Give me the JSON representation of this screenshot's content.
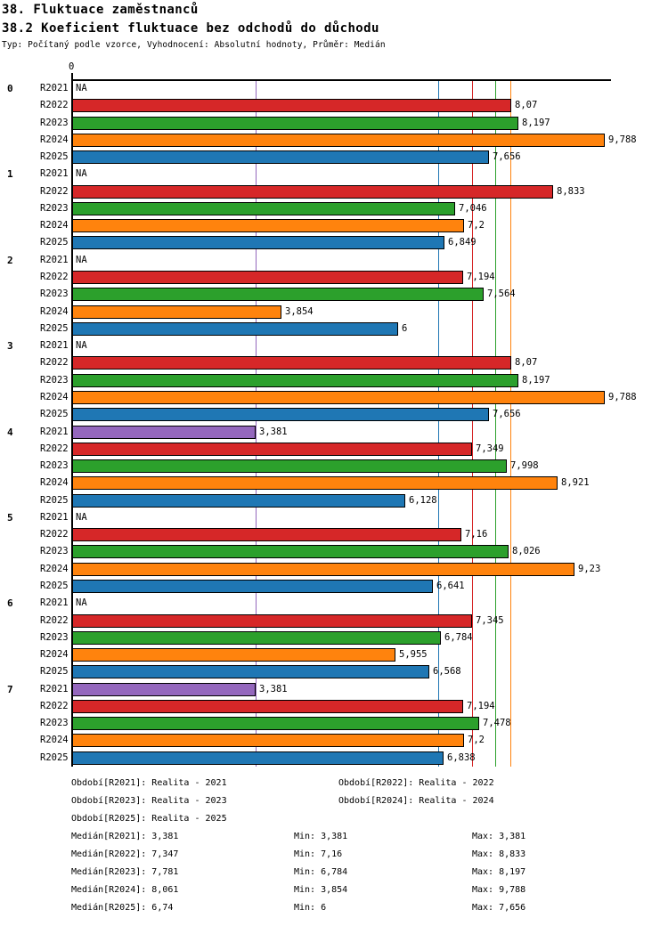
{
  "header": {
    "title": "38. Fluktuace zaměstnanců",
    "subtitle": "38.2 Koeficient fluktuace bez odchodů do důchodu",
    "meta": "Typ: Počítaný podle vzorce, Vyhodnocení: Absolutní hodnoty, Průměr: Medián"
  },
  "chart_data": {
    "type": "bar",
    "orientation": "horizontal",
    "title": "38.2 Koeficient fluktuace bez odchodů do důchodu",
    "axis": {
      "origin_label": "0",
      "value_min": 0,
      "value_max": 9.9,
      "grid": false
    },
    "row_labels": [
      "R2021",
      "R2022",
      "R2023",
      "R2024",
      "R2025"
    ],
    "series_colors": {
      "R2021": "#9467BD",
      "R2022": "#D62728",
      "R2023": "#2CA02C",
      "R2024": "#FF830D",
      "R2025": "#1F77B4"
    },
    "na_label": "NA",
    "groups": [
      {
        "label": "0",
        "values": [
          {
            "series": "R2021",
            "value": null,
            "display": "NA"
          },
          {
            "series": "R2022",
            "value": 8.07,
            "display": "8,07"
          },
          {
            "series": "R2023",
            "value": 8.197,
            "display": "8,197"
          },
          {
            "series": "R2024",
            "value": 9.788,
            "display": "9,788"
          },
          {
            "series": "R2025",
            "value": 7.656,
            "display": "7,656"
          }
        ]
      },
      {
        "label": "1",
        "values": [
          {
            "series": "R2021",
            "value": null,
            "display": "NA"
          },
          {
            "series": "R2022",
            "value": 8.833,
            "display": "8,833"
          },
          {
            "series": "R2023",
            "value": 7.046,
            "display": "7,046"
          },
          {
            "series": "R2024",
            "value": 7.2,
            "display": "7,2"
          },
          {
            "series": "R2025",
            "value": 6.849,
            "display": "6,849"
          }
        ]
      },
      {
        "label": "2",
        "values": [
          {
            "series": "R2021",
            "value": null,
            "display": "NA"
          },
          {
            "series": "R2022",
            "value": 7.194,
            "display": "7,194"
          },
          {
            "series": "R2023",
            "value": 7.564,
            "display": "7,564"
          },
          {
            "series": "R2024",
            "value": 3.854,
            "display": "3,854"
          },
          {
            "series": "R2025",
            "value": 6,
            "display": "6"
          }
        ]
      },
      {
        "label": "3",
        "values": [
          {
            "series": "R2021",
            "value": null,
            "display": "NA"
          },
          {
            "series": "R2022",
            "value": 8.07,
            "display": "8,07"
          },
          {
            "series": "R2023",
            "value": 8.197,
            "display": "8,197"
          },
          {
            "series": "R2024",
            "value": 9.788,
            "display": "9,788"
          },
          {
            "series": "R2025",
            "value": 7.656,
            "display": "7,656"
          }
        ]
      },
      {
        "label": "4",
        "values": [
          {
            "series": "R2021",
            "value": 3.381,
            "display": "3,381"
          },
          {
            "series": "R2022",
            "value": 7.349,
            "display": "7,349"
          },
          {
            "series": "R2023",
            "value": 7.998,
            "display": "7,998"
          },
          {
            "series": "R2024",
            "value": 8.921,
            "display": "8,921"
          },
          {
            "series": "R2025",
            "value": 6.128,
            "display": "6,128"
          }
        ]
      },
      {
        "label": "5",
        "values": [
          {
            "series": "R2021",
            "value": null,
            "display": "NA"
          },
          {
            "series": "R2022",
            "value": 7.16,
            "display": "7,16"
          },
          {
            "series": "R2023",
            "value": 8.026,
            "display": "8,026"
          },
          {
            "series": "R2024",
            "value": 9.23,
            "display": "9,23"
          },
          {
            "series": "R2025",
            "value": 6.641,
            "display": "6,641"
          }
        ]
      },
      {
        "label": "6",
        "values": [
          {
            "series": "R2021",
            "value": null,
            "display": "NA"
          },
          {
            "series": "R2022",
            "value": 7.345,
            "display": "7,345"
          },
          {
            "series": "R2023",
            "value": 6.784,
            "display": "6,784"
          },
          {
            "series": "R2024",
            "value": 5.955,
            "display": "5,955"
          },
          {
            "series": "R2025",
            "value": 6.568,
            "display": "6,568"
          }
        ]
      },
      {
        "label": "7",
        "values": [
          {
            "series": "R2021",
            "value": 3.381,
            "display": "3,381"
          },
          {
            "series": "R2022",
            "value": 7.194,
            "display": "7,194"
          },
          {
            "series": "R2023",
            "value": 7.478,
            "display": "7,478"
          },
          {
            "series": "R2024",
            "value": 7.2,
            "display": "7,2"
          },
          {
            "series": "R2025",
            "value": 6.838,
            "display": "6,838"
          }
        ]
      }
    ],
    "median_lines": [
      {
        "series": "R2021",
        "value": 3.381,
        "color": "#9467BD"
      },
      {
        "series": "R2025",
        "value": 6.74,
        "color": "#1F77B4"
      },
      {
        "series": "R2022",
        "value": 7.347,
        "color": "#D62728"
      },
      {
        "series": "R2023",
        "value": 7.781,
        "color": "#2CA02C"
      },
      {
        "series": "R2024",
        "value": 8.061,
        "color": "#FF830D"
      }
    ],
    "legend_position": "bottom"
  },
  "legend": {
    "rows": [
      [
        "Období[R2021]: Realita - 2021",
        "Období[R2022]: Realita - 2022"
      ],
      [
        "Období[R2023]: Realita - 2023",
        "Období[R2024]: Realita - 2024"
      ],
      [
        "Období[R2025]: Realita - 2025"
      ]
    ]
  },
  "stats": {
    "rows": [
      [
        "Medián[R2021]: 3,381",
        "Min: 3,381",
        "Max: 3,381"
      ],
      [
        "Medián[R2022]: 7,347",
        "Min: 7,16",
        "Max: 8,833"
      ],
      [
        "Medián[R2023]: 7,781",
        "Min: 6,784",
        "Max: 8,197"
      ],
      [
        "Medián[R2024]: 8,061",
        "Min: 3,854",
        "Max: 9,788"
      ],
      [
        "Medián[R2025]: 6,74",
        "Min: 6",
        "Max: 7,656"
      ]
    ]
  }
}
